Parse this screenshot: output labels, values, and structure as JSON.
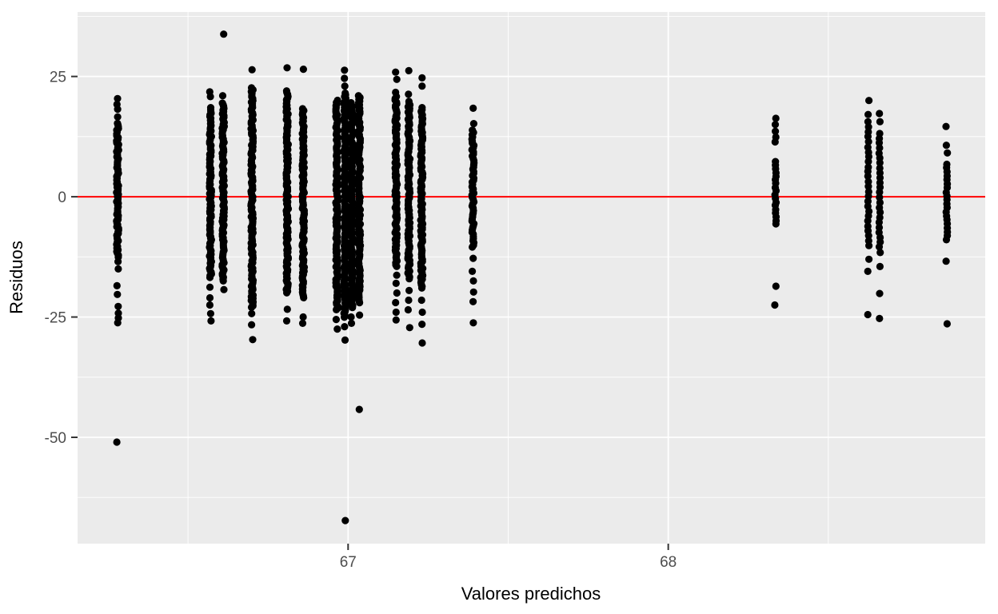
{
  "chart_data": {
    "type": "scatter",
    "title": "",
    "xlabel": "Valores predichos",
    "ylabel": "Residuos",
    "xlim": [
      66.155,
      68.99
    ],
    "ylim": [
      -72.1,
      38.4
    ],
    "x_major_ticks": [
      67,
      68
    ],
    "x_minor_gridlines": [
      66.5,
      67.5,
      68.5
    ],
    "y_major_ticks": [
      25,
      0,
      -25,
      -50
    ],
    "y_minor_gridlines": [
      37.5,
      12.5,
      -12.5,
      -37.5,
      -62.5
    ],
    "grid": "on",
    "legend_position": "none",
    "reference_line": {
      "y": 0,
      "color": "#FF0000"
    },
    "point_color": "#000000",
    "panel_background": "#EBEBEB",
    "grid_color": "#FFFFFF",
    "tick_mark_color": "#333333",
    "tick_label_color": "#4D4D4D",
    "axis_title_color": "#000000",
    "strips": [
      {
        "x": 66.28,
        "style": "solid",
        "n": 76,
        "dense_range": [
          -12.5,
          15.3
        ],
        "points_above": [
          20.4,
          19.2,
          18.2,
          16.6
        ],
        "points_below": [
          -13.5,
          -15.0,
          -18.5,
          -20.3,
          -22.8,
          -24.2,
          -25.2,
          -26.2
        ],
        "outliers": [
          -51.0
        ]
      },
      {
        "x": 66.57,
        "style": "solid",
        "n": 96,
        "dense_range": [
          -16.8,
          18.5
        ],
        "points_above": [
          21.8,
          20.8
        ],
        "points_below": [
          -18.8,
          -21.0,
          -22.5,
          -24.3,
          -25.8
        ],
        "outliers": []
      },
      {
        "x": 66.61,
        "style": "solid",
        "n": 100,
        "dense_range": [
          -17.5,
          19.5
        ],
        "points_above": [
          33.8,
          21.0
        ],
        "points_below": [
          -19.3
        ],
        "outliers": []
      },
      {
        "x": 66.7,
        "style": "solid",
        "n": 124,
        "dense_range": [
          -23.0,
          22.6
        ],
        "points_above": [
          26.4
        ],
        "points_below": [
          -24.3,
          -26.6,
          -29.7
        ],
        "outliers": []
      },
      {
        "x": 66.81,
        "style": "solid",
        "n": 114,
        "dense_range": [
          -20.0,
          22.0
        ],
        "points_above": [
          26.8
        ],
        "points_below": [
          -23.4,
          -25.8
        ],
        "outliers": []
      },
      {
        "x": 66.86,
        "style": "solid",
        "n": 107,
        "dense_range": [
          -21.0,
          18.3
        ],
        "points_above": [
          26.5
        ],
        "points_below": [
          -25.0,
          -26.3
        ],
        "outliers": []
      },
      {
        "x": 66.965,
        "style": "solid",
        "n": 118,
        "dense_range": [
          -23.5,
          20.0
        ],
        "points_above": [],
        "points_below": [
          -25.5,
          -27.5
        ],
        "outliers": []
      },
      {
        "x": 66.99,
        "style": "solid",
        "n": 127,
        "dense_range": [
          -25.0,
          21.5
        ],
        "points_above": [
          26.3,
          24.6,
          23.0
        ],
        "points_below": [
          -27.0,
          -29.8
        ],
        "outliers": [
          -67.3
        ]
      },
      {
        "x": 67.012,
        "style": "solid",
        "n": 116,
        "dense_range": [
          -23.0,
          19.5
        ],
        "points_above": [],
        "points_below": [
          -25.0,
          -26.3
        ],
        "outliers": []
      },
      {
        "x": 67.035,
        "style": "solid",
        "n": 117,
        "dense_range": [
          -22.0,
          21.0
        ],
        "points_above": [],
        "points_below": [
          -24.6
        ],
        "outliers": [
          -44.2
        ]
      },
      {
        "x": 67.15,
        "style": "solid",
        "n": 96,
        "dense_range": [
          -14.5,
          20.8
        ],
        "points_above": [
          25.9,
          24.4,
          21.7
        ],
        "points_below": [
          -16.3,
          -18.0,
          -20.0,
          -22.0,
          -24.0,
          -25.6
        ],
        "outliers": []
      },
      {
        "x": 67.19,
        "style": "solid",
        "n": 100,
        "dense_range": [
          -17.0,
          19.8
        ],
        "points_above": [
          26.2,
          21.3
        ],
        "points_below": [
          -19.5,
          -21.5,
          -23.5,
          -27.2
        ],
        "outliers": []
      },
      {
        "x": 67.23,
        "style": "solid",
        "n": 102,
        "dense_range": [
          -19.0,
          18.5
        ],
        "points_above": [
          24.7,
          23.0
        ],
        "points_below": [
          -21.5,
          -24.0,
          -26.5,
          -30.4
        ],
        "outliers": []
      },
      {
        "x": 67.39,
        "style": "solid",
        "n": 55,
        "dense_range": [
          -10.5,
          13.8
        ],
        "points_above": [
          18.4,
          15.2
        ],
        "points_below": [
          -12.8,
          -15.5,
          -17.5,
          -19.8,
          -21.8,
          -26.2
        ],
        "outliers": []
      },
      {
        "x": 68.335,
        "style": "dotted",
        "n": 18,
        "dense_range": [
          -5.7,
          7.3
        ],
        "points_above": [
          16.3,
          15.0,
          13.6,
          12.4,
          11.4
        ],
        "points_below": [
          -18.6,
          -22.5
        ],
        "outliers": []
      },
      {
        "x": 68.625,
        "style": "dotted",
        "n": 26,
        "dense_range": [
          -10.2,
          15.5
        ],
        "points_above": [
          20.0,
          17.1
        ],
        "points_below": [
          -13.0,
          -15.5,
          -24.5
        ],
        "outliers": []
      },
      {
        "x": 68.66,
        "style": "dotted",
        "n": 25,
        "dense_range": [
          -11.5,
          13.2
        ],
        "points_above": [
          17.3,
          15.6
        ],
        "points_below": [
          -14.5,
          -20.1,
          -25.3
        ],
        "outliers": []
      },
      {
        "x": 68.87,
        "style": "dotted",
        "n": 20,
        "dense_range": [
          -9.0,
          6.8
        ],
        "points_above": [
          14.6,
          10.7,
          9.1
        ],
        "points_below": [
          -13.4,
          -26.4
        ],
        "outliers": []
      }
    ]
  }
}
